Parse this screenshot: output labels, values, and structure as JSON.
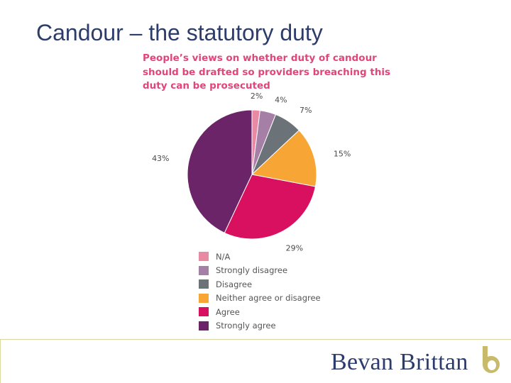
{
  "slide": {
    "title": "Candour – the statutory duty"
  },
  "chart_data": {
    "type": "pie",
    "title_lines": [
      "People’s views on whether duty of candour",
      "should be drafted so providers breaching this",
      "duty can be prosecuted"
    ],
    "slices": [
      {
        "name": "N/A",
        "value": 2,
        "label": "2%",
        "color": "#e88aa3"
      },
      {
        "name": "Strongly disagree",
        "value": 4,
        "label": "4%",
        "color": "#a67fa6"
      },
      {
        "name": "Disagree",
        "value": 7,
        "label": "7%",
        "color": "#6b7378"
      },
      {
        "name": "Neither agree or disagree",
        "value": 15,
        "label": "15%",
        "color": "#f7a535"
      },
      {
        "name": "Agree",
        "value": 29,
        "label": "29%",
        "color": "#d9105f"
      },
      {
        "name": "Strongly agree",
        "value": 43,
        "label": "43%",
        "color": "#6b2467"
      }
    ],
    "start": "top",
    "direction": "clockwise",
    "legend_position": "bottom"
  },
  "footer": {
    "logo_text": "Bevan Brittan",
    "brand_color": "#2d3d6b",
    "logo_mark_color": "#c9b96a"
  }
}
